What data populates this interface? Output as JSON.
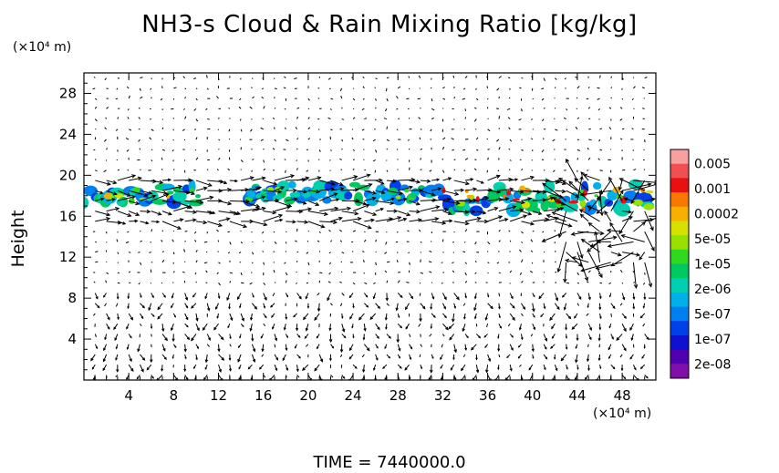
{
  "chart_data": {
    "type": "heatmap",
    "title": "NH3-s Cloud & Rain Mixing Ratio [kg/kg]",
    "ylabel": "Height",
    "x_unit": "(×10⁴ m)",
    "y_unit": "(×10⁴ m)",
    "xlim": [
      0,
      51
    ],
    "ylim": [
      0,
      30
    ],
    "x_ticks": [
      4,
      8,
      12,
      16,
      20,
      24,
      28,
      32,
      36,
      40,
      44,
      48
    ],
    "y_ticks": [
      4,
      8,
      12,
      16,
      20,
      24,
      28
    ],
    "time_label": "TIME  =  7440000.0",
    "colorbar": {
      "labels": [
        "0.005",
        "0.001",
        "0.0002",
        "5e-05",
        "1e-05",
        "2e-06",
        "5e-07",
        "1e-07",
        "2e-08"
      ],
      "colors": [
        "#f8a0a0",
        "#f05050",
        "#e81010",
        "#f87800",
        "#f8b000",
        "#d8e000",
        "#98e000",
        "#30d820",
        "#00c860",
        "#00d0b0",
        "#00b0e8",
        "#0080f0",
        "#0040e8",
        "#1010d0",
        "#5000b0",
        "#8010a8"
      ]
    },
    "cloud_regions": [
      {
        "x": [
          0,
          10.5
        ],
        "y": [
          16.5,
          19.8
        ],
        "max_level": "0.0002"
      },
      {
        "x": [
          14.5,
          31.5
        ],
        "y": [
          17.0,
          19.6
        ],
        "max_level": "5e-05"
      },
      {
        "x": [
          31.5,
          51
        ],
        "y": [
          15.6,
          20.0
        ],
        "max_level": "0.001"
      }
    ],
    "wind_arrow_field": "shown"
  }
}
